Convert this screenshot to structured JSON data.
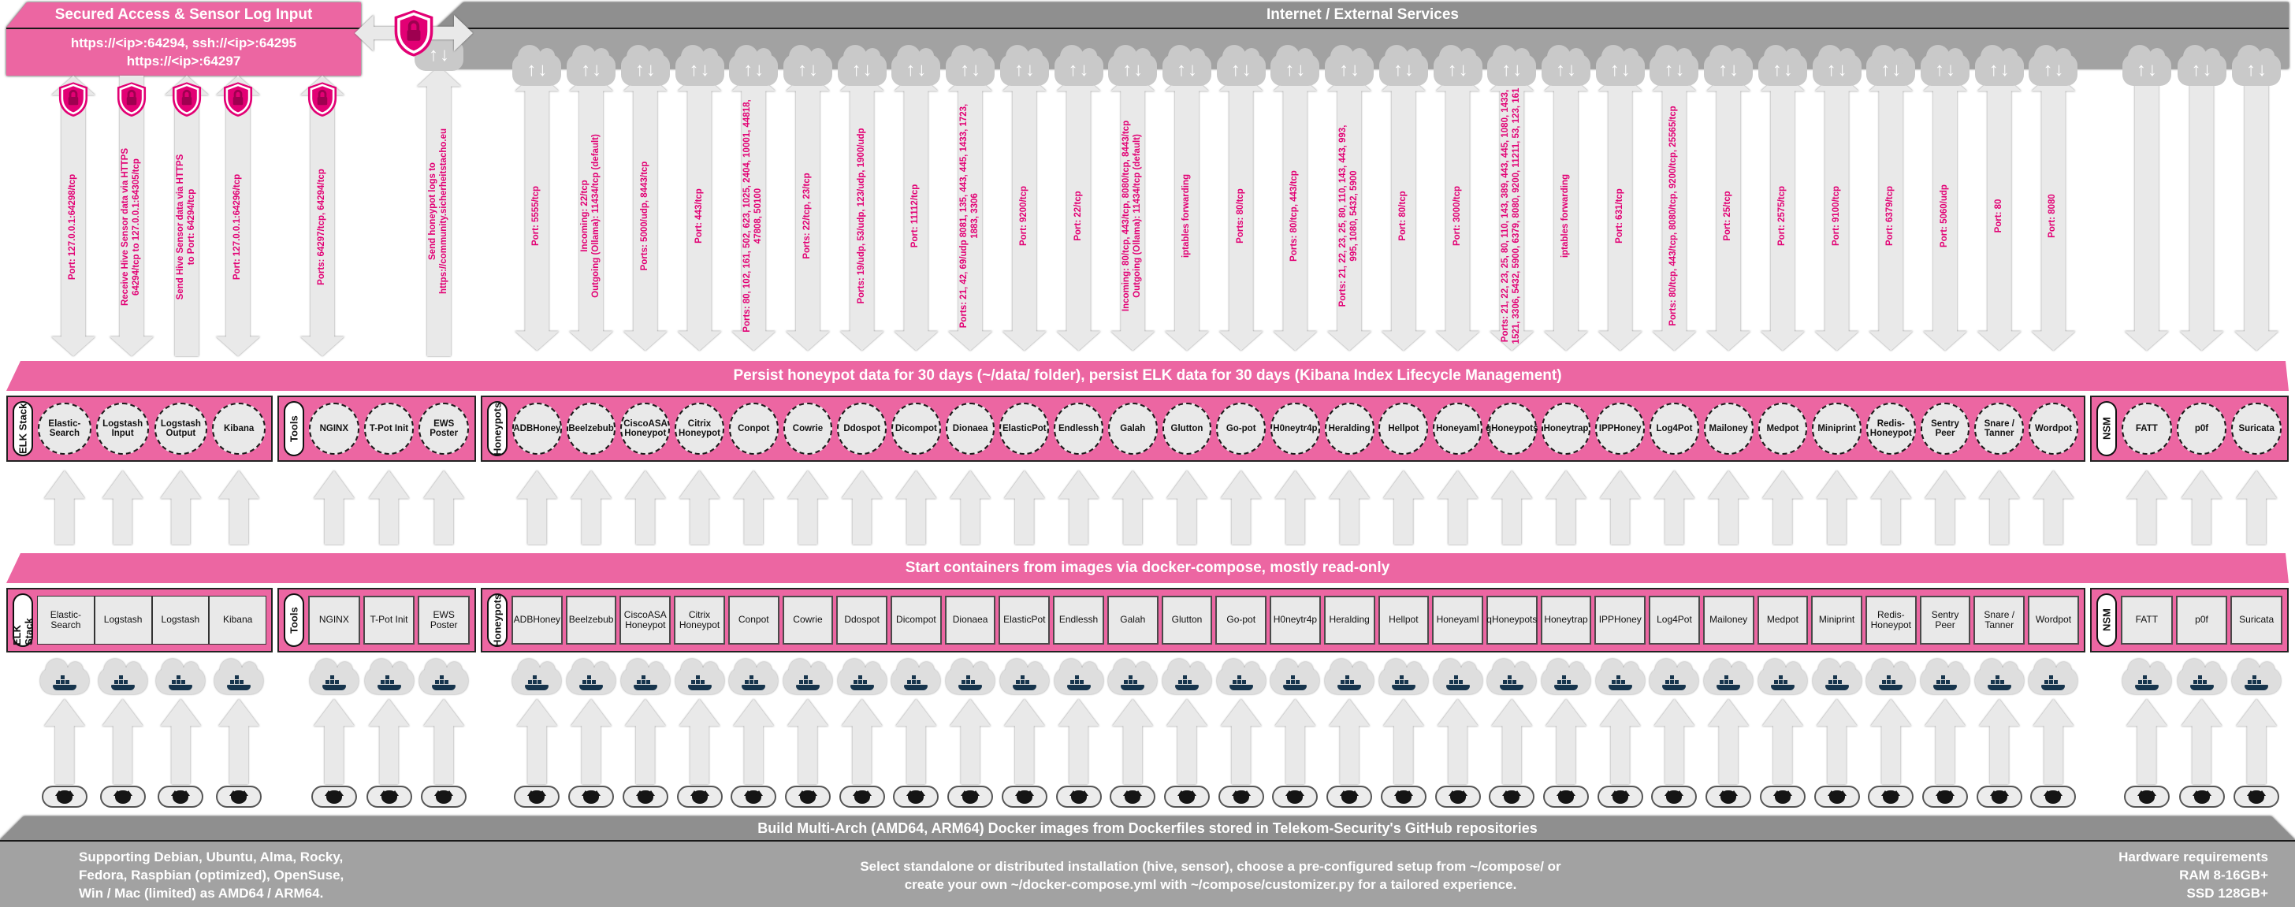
{
  "colors": {
    "magenta": "#e20074",
    "band_pink": "#ec66a2",
    "banner_gray": "#9c9c9c",
    "arrow_fill": "#e9e9e9"
  },
  "icons": {
    "shield": "shield-lock",
    "cloud": "cloud-up-down-arrows",
    "docker": "docker-whale-cloud",
    "github": "github-octocat-cloud"
  },
  "access_box": {
    "title": "Secured Access & Sensor Log Input",
    "line1": "https://<ip>:64294, ssh://<ip>:64295",
    "line2": "https://<ip>:64297"
  },
  "internet_banner": {
    "title": "Internet / External Services"
  },
  "left_arrows": [
    {
      "label": "Port: 127.0.0.1:64298/tcp",
      "dir": "both"
    },
    {
      "label": "Receive Hive Sensor data via HTTPS\n64294/tcp to 127.0.0.1:64305/tcp",
      "dir": "down"
    },
    {
      "label": "Send Hive Sensor data via HTTPS\nto Port: 64294/tcp",
      "dir": "up"
    },
    {
      "label": "Port: 127.0.0.1:64296/tcp",
      "dir": "both"
    },
    {
      "label": "Ports: 64297/tcp, 64294/tcp",
      "dir": "both"
    }
  ],
  "log_arrow": {
    "label": "Send honeypot logs to\nhttps://community.sicherheitstacho.eu",
    "dir": "up"
  },
  "persist_banner": "Persist honeypot data for 30 days (~/data/ folder), persist ELK data for 30 days (Kibana Index Lifecycle Management)",
  "start_banner": "Start containers from images via docker-compose, mostly read-only",
  "groups": [
    {
      "key": "elk",
      "label": "ELK Stack",
      "contiguous": true,
      "items": [
        {
          "circle": "Elastic-Search",
          "box": "Elastic-Search"
        },
        {
          "circle": "Logstash Input",
          "box": "Logstash"
        },
        {
          "circle": "Logstash Output",
          "box": "Logstash"
        },
        {
          "circle": "Kibana",
          "box": "Kibana"
        }
      ]
    },
    {
      "key": "tools",
      "label": "Tools",
      "items": [
        {
          "circle": "NGINX",
          "box": "NGINX"
        },
        {
          "circle": "T-Pot Init",
          "box": "T-Pot Init"
        },
        {
          "circle": "EWS Poster",
          "box": "EWS Poster"
        }
      ]
    },
    {
      "key": "hp",
      "label": "Honeypots",
      "items": [
        {
          "circle": "ADBHoney",
          "box": "ADBHoney",
          "port": "Port: 5555/tcp",
          "arrow": "both"
        },
        {
          "circle": "Beelzebub",
          "box": "Beelzebub",
          "port": "Incoming: 22/tcp\nOutgoing (Ollama): 11434/tcp (default)",
          "arrow": "both"
        },
        {
          "circle": "CiscoASA Honeypot",
          "box": "CiscoASA Honeypot",
          "port": "Ports: 5000/udp, 8443/tcp",
          "arrow": "both"
        },
        {
          "circle": "Citrix Honeypot",
          "box": "Citrix Honeypot",
          "port": "Port: 443/tcp",
          "arrow": "both"
        },
        {
          "circle": "Conpot",
          "box": "Conpot",
          "port": "Ports: 80, 102, 161, 502, 623, 1025, 2404, 10001, 44818,\n47808, 50100",
          "arrow": "both"
        },
        {
          "circle": "Cowrie",
          "box": "Cowrie",
          "port": "Ports: 22/tcp, 23/tcp",
          "arrow": "both"
        },
        {
          "circle": "Ddospot",
          "box": "Ddospot",
          "port": "Ports: 19/udp, 53/udp, 123/udp, 1900/udp",
          "arrow": "both"
        },
        {
          "circle": "Dicompot",
          "box": "Dicompot",
          "port": "Port: 11112/tcp",
          "arrow": "both"
        },
        {
          "circle": "Dionaea",
          "box": "Dionaea",
          "port": "Ports: 21, 42, 69/udp 8081, 135, 443, 445, 1433, 1723,\n1883, 3306",
          "arrow": "both"
        },
        {
          "circle": "ElasticPot",
          "box": "ElasticPot",
          "port": "Port: 9200/tcp",
          "arrow": "both"
        },
        {
          "circle": "Endlessh",
          "box": "Endlessh",
          "port": "Port: 22/tcp",
          "arrow": "both"
        },
        {
          "circle": "Galah",
          "box": "Galah",
          "port": "Incoming: 80/tcp, 443/tcp, 8080/tcp, 8443/tcp\nOutgoing (Ollama): 11434/tcp (default)",
          "arrow": "both"
        },
        {
          "circle": "Glutton",
          "box": "Glutton",
          "port": "iptables forwarding",
          "arrow": "both"
        },
        {
          "circle": "Go-pot",
          "box": "Go-pot",
          "port": "Ports: 80/tcp",
          "arrow": "both"
        },
        {
          "circle": "H0neytr4p",
          "box": "H0neytr4p",
          "port": "Ports: 80/tcp, 443/tcp",
          "arrow": "both"
        },
        {
          "circle": "Heralding",
          "box": "Heralding",
          "port": "Ports: 21, 22, 23, 25, 80, 110, 143, 443, 993,\n995, 1080, 5432, 5900",
          "arrow": "both"
        },
        {
          "circle": "Hellpot",
          "box": "Hellpot",
          "port": "Port: 80/tcp",
          "arrow": "both"
        },
        {
          "circle": "Honeyaml",
          "box": "Honeyaml",
          "port": "Port: 3000/tcp",
          "arrow": "both"
        },
        {
          "circle": "qHoneypots",
          "box": "qHoneypots",
          "port": "Ports: 21, 22, 23, 25, 80, 110, 143, 389, 443, 445, 1080, 1433,\n1521, 3306, 5432, 5900, 6379, 8080, 9200, 11211, 53, 123, 161",
          "arrow": "both"
        },
        {
          "circle": "Honeytrap",
          "box": "Honeytrap",
          "port": "iptables forwarding",
          "arrow": "both"
        },
        {
          "circle": "IPPHoney",
          "box": "IPPHoney",
          "port": "Port: 631/tcp",
          "arrow": "both"
        },
        {
          "circle": "Log4Pot",
          "box": "Log4Pot",
          "port": "Ports: 80/tcp, 443/tcp, 8080/tcp, 9200/tcp, 25565/tcp",
          "arrow": "both"
        },
        {
          "circle": "Mailoney",
          "box": "Mailoney",
          "port": "Port: 25/tcp",
          "arrow": "both"
        },
        {
          "circle": "Medpot",
          "box": "Medpot",
          "port": "Port: 2575/tcp",
          "arrow": "both"
        },
        {
          "circle": "Miniprint",
          "box": "Miniprint",
          "port": "Port: 9100/tcp",
          "arrow": "both"
        },
        {
          "circle": "Redis-Honeypot",
          "box": "Redis-Honeypot",
          "port": "Port: 6379/tcp",
          "arrow": "both"
        },
        {
          "circle": "Sentry Peer",
          "box": "Sentry Peer",
          "port": "Port: 5060/udp",
          "arrow": "both"
        },
        {
          "circle": "Snare / Tanner",
          "box": "Snare / Tanner",
          "port": "Port: 80",
          "arrow": "both"
        },
        {
          "circle": "Wordpot",
          "box": "Wordpot",
          "port": "Port: 8080",
          "arrow": "both"
        }
      ]
    },
    {
      "key": "nsm",
      "label": "NSM",
      "items": [
        {
          "circle": "FATT",
          "box": "FATT",
          "port": "",
          "arrow": "down"
        },
        {
          "circle": "p0f",
          "box": "p0f",
          "port": "",
          "arrow": "down"
        },
        {
          "circle": "Suricata",
          "box": "Suricata",
          "port": "",
          "arrow": "down"
        }
      ]
    }
  ],
  "bottom_banner": {
    "title": "Build Multi-Arch (AMD64, ARM64) Docker images from Dockerfiles stored in Telekom-Security's GitHub repositories",
    "left": "Supporting Debian, Ubuntu, Alma, Rocky,\nFedora, Raspbian (optimized), OpenSuse,\nWin / Mac (limited) as AMD64 / ARM64.",
    "center": "Select standalone or distributed installation (hive, sensor), choose a pre-configured setup from ~/compose/ or\ncreate your own ~/docker-compose.yml with ~/compose/customizer.py for a tailored experience.",
    "right": "Hardware requirements\nRAM 8-16GB+\nSSD 128GB+"
  }
}
